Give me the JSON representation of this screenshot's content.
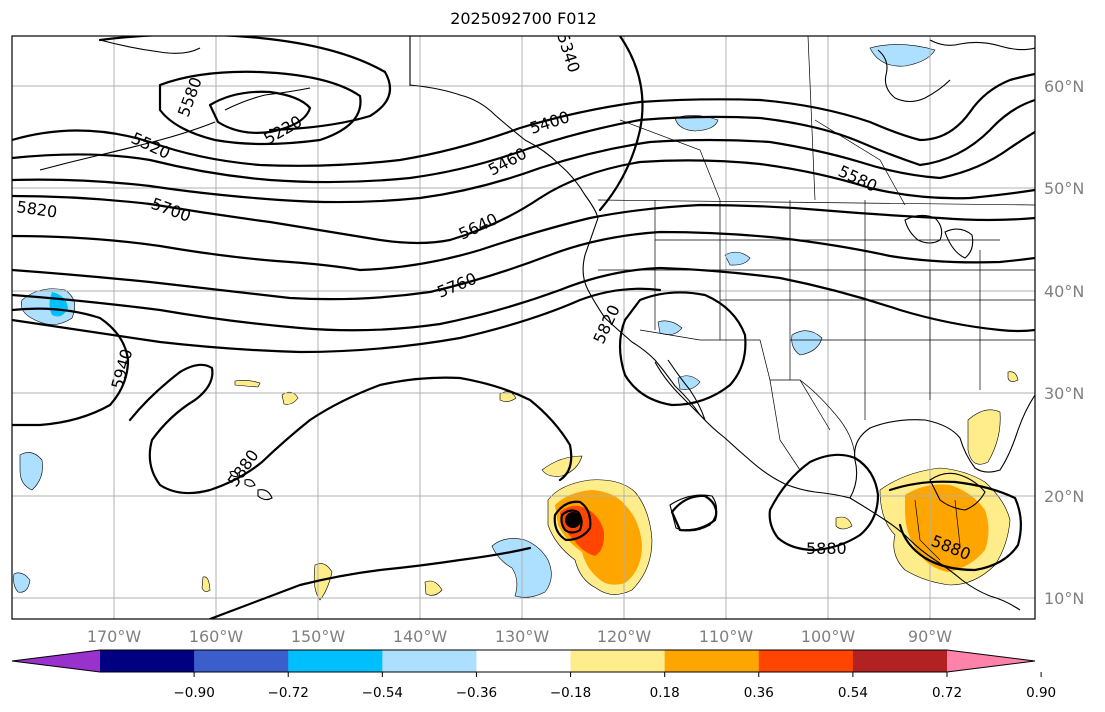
{
  "title": "2025092700 F012",
  "map": {
    "lat_labels": [
      "60°N",
      "50°N",
      "40°N",
      "30°N",
      "20°N",
      "10°N"
    ],
    "lon_labels": [
      "170°W",
      "160°W",
      "150°W",
      "140°W",
      "130°W",
      "120°W",
      "110°W",
      "100°W",
      "90°W"
    ],
    "contour_labels": [
      {
        "text": "5580",
        "id": "ct-5580-nw"
      },
      {
        "text": "5220",
        "id": "ct-5220"
      },
      {
        "text": "5520",
        "id": "ct-5520"
      },
      {
        "text": "5340",
        "id": "ct-5340"
      },
      {
        "text": "5400",
        "id": "ct-5400"
      },
      {
        "text": "5460",
        "id": "ct-5460"
      },
      {
        "text": "5580",
        "id": "ct-5580-ne"
      },
      {
        "text": "5820",
        "id": "ct-5820-w"
      },
      {
        "text": "5700",
        "id": "ct-5700"
      },
      {
        "text": "5640",
        "id": "ct-5640"
      },
      {
        "text": "5760",
        "id": "ct-5760"
      },
      {
        "text": "5820",
        "id": "ct-5820-c"
      },
      {
        "text": "5940",
        "id": "ct-5940"
      },
      {
        "text": "5880",
        "id": "ct-5880-w"
      },
      {
        "text": "5880",
        "id": "ct-5880-c"
      },
      {
        "text": "5880",
        "id": "ct-5880-e"
      }
    ]
  },
  "colorbar": {
    "colors": [
      "#9932CC",
      "#000080",
      "#3A5FCD",
      "#00BFFF",
      "#ADDFFF",
      "#FFFFFF",
      "#FFEC8B",
      "#FFA500",
      "#FF4500",
      "#B22222",
      "#FF82AB"
    ],
    "ticks": [
      "−0.90",
      "−0.72",
      "−0.54",
      "−0.36",
      "−0.18",
      "0.18",
      "0.36",
      "0.54",
      "0.72",
      "0.90"
    ]
  },
  "colors": {
    "light_blue": "#ADDFFF",
    "medium_blue": "#00BFFF",
    "yellow": "#FFEC8B",
    "orange": "#FFA500",
    "red_orange": "#FF4500",
    "grid": "#b0b0b0"
  }
}
